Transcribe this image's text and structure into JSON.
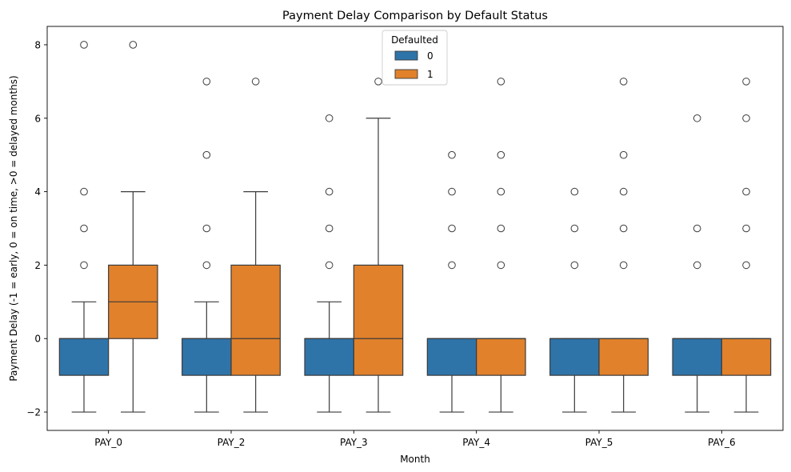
{
  "chart_data": {
    "type": "box",
    "title": "Payment Delay Comparison by Default Status",
    "xlabel": "Month",
    "ylabel": "Payment Delay (-1 = early, 0 = on time, >0 = delayed months)",
    "ylim": [
      -2.5,
      8.5
    ],
    "yticks": [
      -2,
      0,
      2,
      4,
      6,
      8
    ],
    "ytick_labels": [
      "−2",
      "0",
      "2",
      "4",
      "6",
      "8"
    ],
    "categories": [
      "PAY_0",
      "PAY_2",
      "PAY_3",
      "PAY_4",
      "PAY_5",
      "PAY_6"
    ],
    "legend": {
      "title": "Defaulted",
      "position": "top-center"
    },
    "grid": false,
    "series": [
      {
        "name": "0",
        "color": "#2f74a9",
        "boxes": [
          {
            "whislo": -2,
            "q1": -1,
            "med": 0,
            "q3": 0,
            "whishi": 1,
            "fliers": [
              2,
              3,
              4,
              8
            ]
          },
          {
            "whislo": -2,
            "q1": -1,
            "med": 0,
            "q3": 0,
            "whishi": 1,
            "fliers": [
              2,
              3,
              5,
              7
            ]
          },
          {
            "whislo": -2,
            "q1": -1,
            "med": 0,
            "q3": 0,
            "whishi": 1,
            "fliers": [
              2,
              3,
              4,
              6
            ]
          },
          {
            "whislo": -2,
            "q1": -1,
            "med": 0,
            "q3": 0,
            "whishi": 0,
            "fliers": [
              2,
              3,
              4,
              5
            ]
          },
          {
            "whislo": -2,
            "q1": -1,
            "med": 0,
            "q3": 0,
            "whishi": 0,
            "fliers": [
              2,
              3,
              4
            ]
          },
          {
            "whislo": -2,
            "q1": -1,
            "med": 0,
            "q3": 0,
            "whishi": 0,
            "fliers": [
              2,
              3,
              6
            ]
          }
        ]
      },
      {
        "name": "1",
        "color": "#e1812b",
        "boxes": [
          {
            "whislo": -2,
            "q1": 0,
            "med": 1,
            "q3": 2,
            "whishi": 4,
            "fliers": [
              8
            ]
          },
          {
            "whislo": -2,
            "q1": -1,
            "med": 0,
            "q3": 2,
            "whishi": 4,
            "fliers": [
              7
            ]
          },
          {
            "whislo": -2,
            "q1": -1,
            "med": 0,
            "q3": 2,
            "whishi": 6,
            "fliers": [
              7
            ]
          },
          {
            "whislo": -2,
            "q1": -1,
            "med": 0,
            "q3": 0,
            "whishi": 0,
            "fliers": [
              2,
              3,
              4,
              5,
              7
            ]
          },
          {
            "whislo": -2,
            "q1": -1,
            "med": 0,
            "q3": 0,
            "whishi": 0,
            "fliers": [
              2,
              3,
              4,
              5,
              7
            ]
          },
          {
            "whislo": -2,
            "q1": -1,
            "med": 0,
            "q3": 0,
            "whishi": 0,
            "fliers": [
              2,
              3,
              4,
              6,
              7
            ]
          }
        ]
      }
    ]
  }
}
